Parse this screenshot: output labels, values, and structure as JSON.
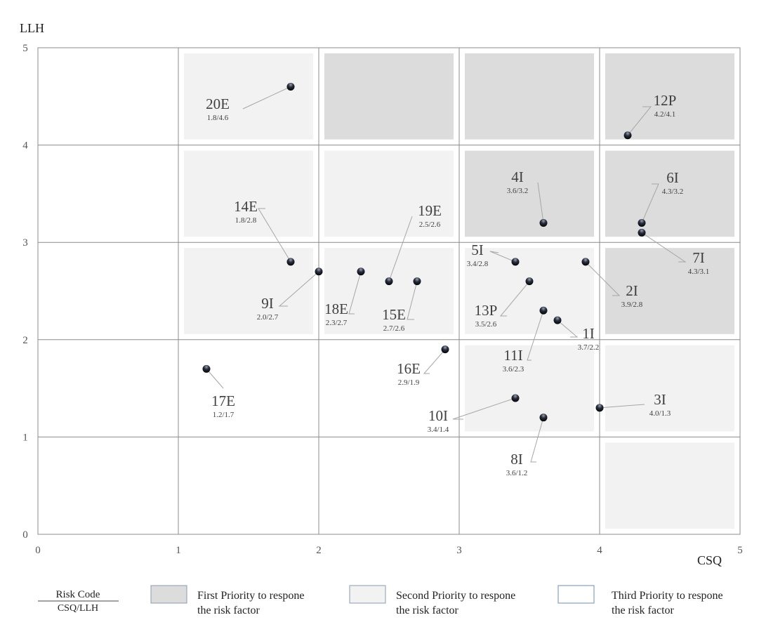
{
  "chart_data": {
    "type": "scatter",
    "title": "",
    "xlabel": "CSQ",
    "ylabel": "LLH",
    "xlim": [
      0,
      5
    ],
    "ylim": [
      0,
      5
    ],
    "xticks": [
      "0",
      "1",
      "2",
      "3",
      "4",
      "5"
    ],
    "yticks": [
      "0",
      "1",
      "2",
      "3",
      "4",
      "5"
    ],
    "grid": true,
    "zone_levels_by_row_top_to_bottom": [
      [
        "third",
        "second",
        "first",
        "first",
        "first"
      ],
      [
        "third",
        "second",
        "second",
        "first",
        "first"
      ],
      [
        "third",
        "second",
        "second",
        "second",
        "first"
      ],
      [
        "third",
        "third",
        "third",
        "second",
        "second"
      ],
      [
        "third",
        "third",
        "third",
        "third",
        "second"
      ]
    ],
    "points": [
      {
        "code": "20E",
        "x": 1.8,
        "y": 4.6,
        "value_label": "1.8/4.6"
      },
      {
        "code": "12P",
        "x": 4.2,
        "y": 4.1,
        "value_label": "4.2/4.1"
      },
      {
        "code": "4I",
        "x": 3.6,
        "y": 3.2,
        "value_label": "3.6/3.2"
      },
      {
        "code": "6I",
        "x": 4.3,
        "y": 3.2,
        "value_label": "4.3/3.2"
      },
      {
        "code": "14E",
        "x": 1.8,
        "y": 2.8,
        "value_label": "1.8/2.8"
      },
      {
        "code": "19E",
        "x": 2.5,
        "y": 2.6,
        "value_label": "2.5/2.6"
      },
      {
        "code": "5I",
        "x": 3.4,
        "y": 2.8,
        "value_label": "3.4/2.8"
      },
      {
        "code": "7I",
        "x": 4.3,
        "y": 3.1,
        "value_label": "4.3/3.1"
      },
      {
        "code": "9I",
        "x": 2.0,
        "y": 2.7,
        "value_label": "2.0/2.7"
      },
      {
        "code": "18E",
        "x": 2.3,
        "y": 2.7,
        "value_label": "2.3/2.7"
      },
      {
        "code": "15E",
        "x": 2.7,
        "y": 2.6,
        "value_label": "2.7/2.6"
      },
      {
        "code": "13P",
        "x": 3.5,
        "y": 2.6,
        "value_label": "3.5/2.6"
      },
      {
        "code": "2I",
        "x": 3.9,
        "y": 2.8,
        "value_label": "3.9/2.8"
      },
      {
        "code": "1I",
        "x": 3.7,
        "y": 2.2,
        "value_label": "3.7/2.2"
      },
      {
        "code": "11I",
        "x": 3.6,
        "y": 2.3,
        "value_label": "3.6/2.3"
      },
      {
        "code": "16E",
        "x": 2.9,
        "y": 1.9,
        "value_label": "2.9/1.9"
      },
      {
        "code": "17E",
        "x": 1.2,
        "y": 1.7,
        "value_label": "1.2/1.7"
      },
      {
        "code": "10I",
        "x": 3.4,
        "y": 1.4,
        "value_label": "3.4/1.4"
      },
      {
        "code": "3I",
        "x": 4.0,
        "y": 1.3,
        "value_label": "4.0/1.3"
      },
      {
        "code": "8I",
        "x": 3.6,
        "y": 1.2,
        "value_label": "3.6/1.2"
      }
    ],
    "colors": {
      "first": "#dcdcdc",
      "second": "#f2f2f2",
      "third": "#ffffff",
      "grid": "#8c8c8c",
      "dot": "#1a1d26",
      "text": "#404040"
    },
    "legend": {
      "key_top": "Risk Code",
      "key_bottom": "CSQ/LLH",
      "items": [
        {
          "level": "first",
          "line1": "First Priority to respone",
          "line2": "the risk factor"
        },
        {
          "level": "second",
          "line1": "Second Priority to respone",
          "line2": "the risk factor"
        },
        {
          "level": "third",
          "line1": "Third Priority to respone",
          "line2": "the risk factor"
        }
      ]
    }
  }
}
